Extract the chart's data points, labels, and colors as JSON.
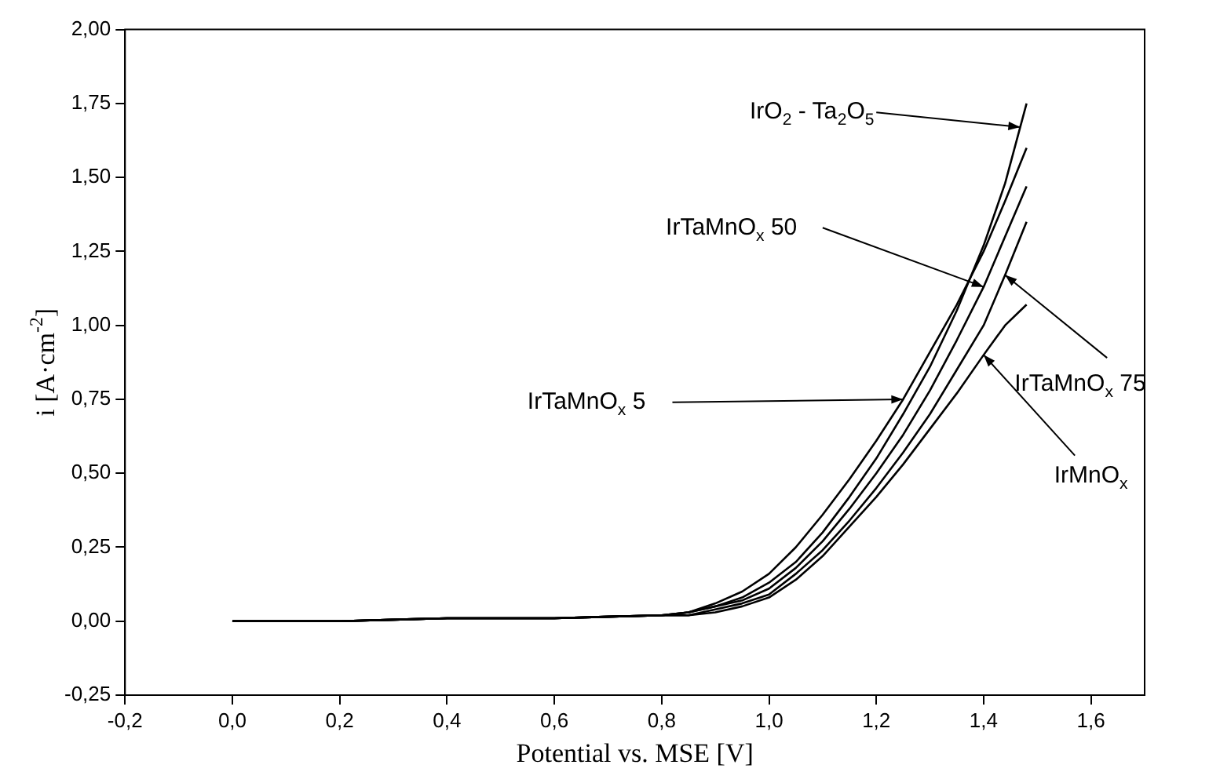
{
  "chart_data": {
    "type": "line",
    "xlabel": "Potential vs. MSE [V]",
    "ylabel": "i [A·cm$^{-2}$]",
    "x": [
      0,
      0.2,
      0.4,
      0.6,
      0.8,
      0.85,
      0.9,
      0.95,
      1.0,
      1.05,
      1.1,
      1.15,
      1.2,
      1.25,
      1.3,
      1.35,
      1.4,
      1.44,
      1.48
    ],
    "series": [
      {
        "color": "#000000",
        "values": [
          0,
          0,
          0.01,
          0.01,
          0.02,
          0.03,
          0.05,
          0.08,
          0.13,
          0.2,
          0.3,
          0.42,
          0.55,
          0.7,
          0.86,
          1.05,
          1.27,
          1.48,
          1.75
        ]
      },
      {
        "color": "#000000",
        "values": [
          0,
          0,
          0.01,
          0.01,
          0.02,
          0.03,
          0.06,
          0.1,
          0.16,
          0.25,
          0.36,
          0.48,
          0.61,
          0.75,
          0.91,
          1.07,
          1.25,
          1.42,
          1.6
        ]
      },
      {
        "color": "#000000",
        "values": [
          0,
          0,
          0.01,
          0.01,
          0.02,
          0.03,
          0.05,
          0.07,
          0.11,
          0.18,
          0.27,
          0.38,
          0.5,
          0.63,
          0.78,
          0.95,
          1.13,
          1.3,
          1.47
        ]
      },
      {
        "color": "#000000",
        "values": [
          0,
          0,
          0.01,
          0.01,
          0.02,
          0.02,
          0.04,
          0.06,
          0.09,
          0.16,
          0.24,
          0.34,
          0.45,
          0.57,
          0.7,
          0.85,
          1.0,
          1.17,
          1.35
        ]
      },
      {
        "color": "#000000",
        "values": [
          0,
          0,
          0.01,
          0.01,
          0.02,
          0.02,
          0.03,
          0.05,
          0.08,
          0.14,
          0.22,
          0.32,
          0.42,
          0.53,
          0.65,
          0.77,
          0.9,
          1.0,
          1.07
        ]
      }
    ],
    "xlim": [
      -0.2,
      1.7
    ],
    "xticks": [
      {
        "value": -0.2,
        "label": "-0,2"
      },
      {
        "value": 0,
        "label": "0,0"
      },
      {
        "value": 0.2,
        "label": "0,2"
      },
      {
        "value": 0.4,
        "label": "0,4"
      },
      {
        "value": 0.6,
        "label": "0,6"
      },
      {
        "value": 0.8,
        "label": "0,8"
      },
      {
        "value": 1,
        "label": "1,0"
      },
      {
        "value": 1.2,
        "label": "1,2"
      },
      {
        "value": 1.4,
        "label": "1,4"
      },
      {
        "value": 1.6,
        "label": "1,6"
      }
    ],
    "ylim": [
      -0.25,
      2
    ],
    "yticks": [
      {
        "value": -0.25,
        "label": "-0,25"
      },
      {
        "value": 0,
        "label": "0,00"
      },
      {
        "value": 0.25,
        "label": "0,25"
      },
      {
        "value": 0.5,
        "label": "0,50"
      },
      {
        "value": 0.75,
        "label": "0,75"
      },
      {
        "value": 1,
        "label": "1,00"
      },
      {
        "value": 1.25,
        "label": "1,25"
      },
      {
        "value": 1.5,
        "label": "1,50"
      },
      {
        "value": 1.75,
        "label": "1,75"
      },
      {
        "value": 2,
        "label": "2,00"
      }
    ],
    "annotations": [
      {
        "text": "IrO$_{2}$ - Ta$_{2}$O$_{5}$",
        "x": 1.468,
        "y": 1.67
      },
      {
        "text": "IrTaMnO$_{x}$ 5",
        "x": 1.25,
        "y": 0.75
      },
      {
        "text": "IrTaMnO$_{x}$ 50",
        "x": 1.4,
        "y": 1.13
      },
      {
        "text": "IrTaMnO$_{x}$ 75",
        "x": 1.44,
        "y": 1.17
      },
      {
        "text": "IrMnO$_{x}$",
        "x": 1.4,
        "y": 0.9
      }
    ],
    "grid": false,
    "legend": false,
    "marker": "none",
    "line_style": "solid"
  }
}
